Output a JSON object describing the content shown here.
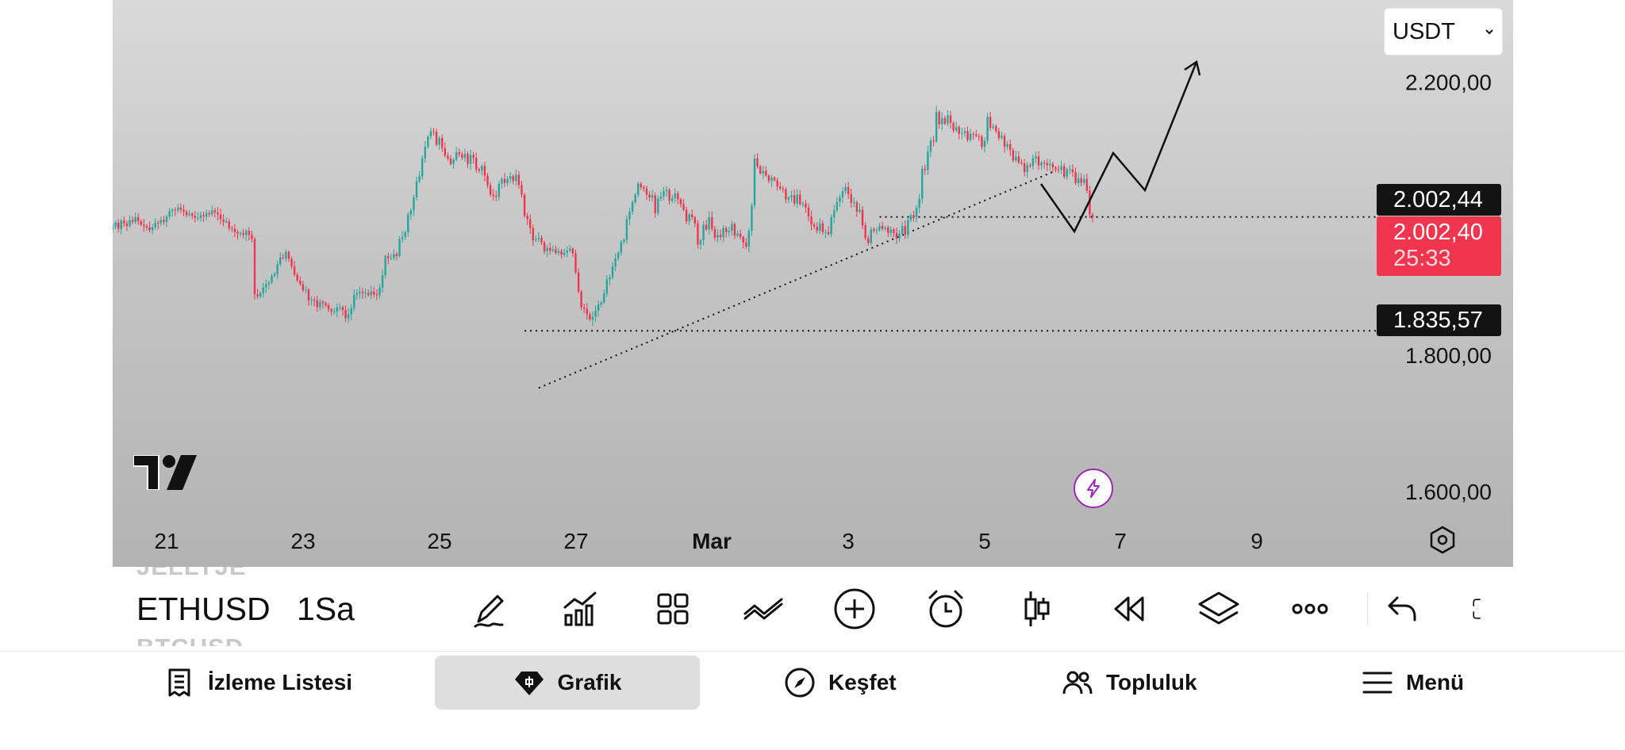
{
  "chart_data": {
    "type": "candlestick",
    "symbol": "ETHUSD",
    "interval": "1Sa",
    "currency": "USDT",
    "x_tick_labels": [
      "21",
      "23",
      "25",
      "27",
      "Mar",
      "3",
      "5",
      "7",
      "9"
    ],
    "y_tick_labels": [
      "2.200,00",
      "1.800,00",
      "1.600,00"
    ],
    "ylim": [
      1490,
      2320
    ],
    "grid": false,
    "close_series": [
      1988,
      1994,
      1985,
      1997,
      1993,
      1989,
      1998,
      1995,
      2002,
      1996,
      1991,
      1989,
      1987,
      1983,
      1987,
      1994,
      1993,
      1998,
      1995,
      2003,
      2011,
      2013,
      2012,
      2016,
      2013,
      2010,
      2005,
      2007,
      2004,
      2001,
      2001,
      2005,
      2003,
      2008,
      2006,
      2012,
      2009,
      2006,
      1999,
      1995,
      1996,
      1986,
      1985,
      1980,
      1978,
      1979,
      1976,
      1982,
      1976,
      1970,
      1889,
      1886,
      1891,
      1899,
      1904,
      1906,
      1916,
      1919,
      1933,
      1943,
      1942,
      1951,
      1941,
      1930,
      1918,
      1909,
      1904,
      1895,
      1896,
      1880,
      1881,
      1880,
      1870,
      1878,
      1876,
      1873,
      1867,
      1864,
      1864,
      1870,
      1870,
      1866,
      1854,
      1860,
      1869,
      1888,
      1891,
      1893,
      1891,
      1891,
      1888,
      1893,
      1889,
      1888,
      1899,
      1917,
      1945,
      1942,
      1942,
      1948,
      1945,
      1970,
      1973,
      1980,
      2006,
      2012,
      2031,
      2055,
      2062,
      2088,
      2105,
      2120,
      2128,
      2127,
      2108,
      2118,
      2103,
      2092,
      2088,
      2080,
      2086,
      2097,
      2094,
      2089,
      2095,
      2080,
      2093,
      2089,
      2072,
      2070,
      2077,
      2063,
      2049,
      2035,
      2033,
      2032,
      2051,
      2058,
      2052,
      2058,
      2062,
      2055,
      2064,
      2049,
      2035,
      2004,
      1999,
      1986,
      1968,
      1970,
      1972,
      1965,
      1952,
      1957,
      1953,
      1955,
      1950,
      1952,
      1947,
      1950,
      1953,
      1956,
      1949,
      1921,
      1893,
      1870,
      1868,
      1860,
      1852,
      1856,
      1865,
      1874,
      1877,
      1890,
      1911,
      1914,
      1930,
      1942,
      1950,
      1966,
      1969,
      1999,
      2010,
      2024,
      2035,
      2051,
      2046,
      2044,
      2035,
      2031,
      2034,
      2008,
      2029,
      2032,
      2040,
      2042,
      2026,
      2030,
      2037,
      2028,
      2021,
      2013,
      1996,
      2006,
      2002,
      1993,
      1962,
      1968,
      1991,
      1984,
      2002,
      1985,
      1972,
      1976,
      1973,
      1986,
      1980,
      1982,
      1992,
      1975,
      1978,
      1973,
      1965,
      1959,
      1982,
      2019,
      2088,
      2076,
      2066,
      2070,
      2063,
      2055,
      2060,
      2056,
      2047,
      2044,
      2043,
      2028,
      2031,
      2034,
      2022,
      2035,
      2021,
      2022,
      2016,
      2003,
      1991,
      1988,
      1982,
      1993,
      1980,
      1980,
      1977,
      2002,
      2012,
      2024,
      2031,
      2040,
      2046,
      2036,
      2023,
      2024,
      2010,
      2013,
      1990,
      1971,
      1964,
      1984,
      1982,
      1983,
      1989,
      1985,
      1987,
      1979,
      1984,
      1979,
      1971,
      1978,
      1989,
      1976,
      1998,
      2005,
      2002,
      2016,
      2029,
      2073,
      2071,
      2098,
      2114,
      2113,
      2156,
      2138,
      2147,
      2139,
      2151,
      2140,
      2129,
      2134,
      2124,
      2125,
      2128,
      2115,
      2124,
      2123,
      2121,
      2120,
      2105,
      2114,
      2149,
      2133,
      2135,
      2128,
      2118,
      2121,
      2105,
      2109,
      2100,
      2085,
      2091,
      2082,
      2081,
      2068,
      2078,
      2077,
      2088,
      2091,
      2078,
      2082,
      2081,
      2078,
      2080,
      2075,
      2072,
      2071,
      2077,
      2061,
      2072,
      2072,
      2068,
      2052,
      2059,
      2052,
      2058,
      2041,
      2006,
      2002
    ],
    "series": [
      {
        "name": "ETHUSD",
        "type": "candles"
      }
    ],
    "price_labels": {
      "last": "2.002,44",
      "current": "2.002,40",
      "countdown": "25:33",
      "level": "1.835,57"
    },
    "annotations": [
      {
        "type": "dotted-trendline",
        "from": {
          "index": 150,
          "price": 1752
        },
        "to": {
          "index": 332,
          "price": 2070
        }
      },
      {
        "type": "dotted-horizontal",
        "price": 1835.57
      },
      {
        "type": "dotted-horizontal",
        "price": 2002.4
      },
      {
        "type": "projection-arrow"
      }
    ],
    "colors": {
      "up": "#26a69a",
      "down": "#f0364f"
    }
  },
  "toolbar": {
    "symbol": "ETHUSD",
    "symbol_prev": "JELLYJE",
    "symbol_next": "BTCUSD",
    "interval": "1Sa",
    "tools": [
      "pen-icon",
      "indicators-icon",
      "templates-icon",
      "compare-icon",
      "add-icon",
      "alert-icon",
      "candle-type-icon",
      "replay-icon",
      "layers-icon",
      "more-icon",
      "undo-icon",
      "fullscreen-icon"
    ]
  },
  "nav": {
    "watchlist": "İzleme Listesi",
    "chart": "Grafik",
    "explore": "Keşfet",
    "community": "Topluluk",
    "menu": "Menü"
  }
}
